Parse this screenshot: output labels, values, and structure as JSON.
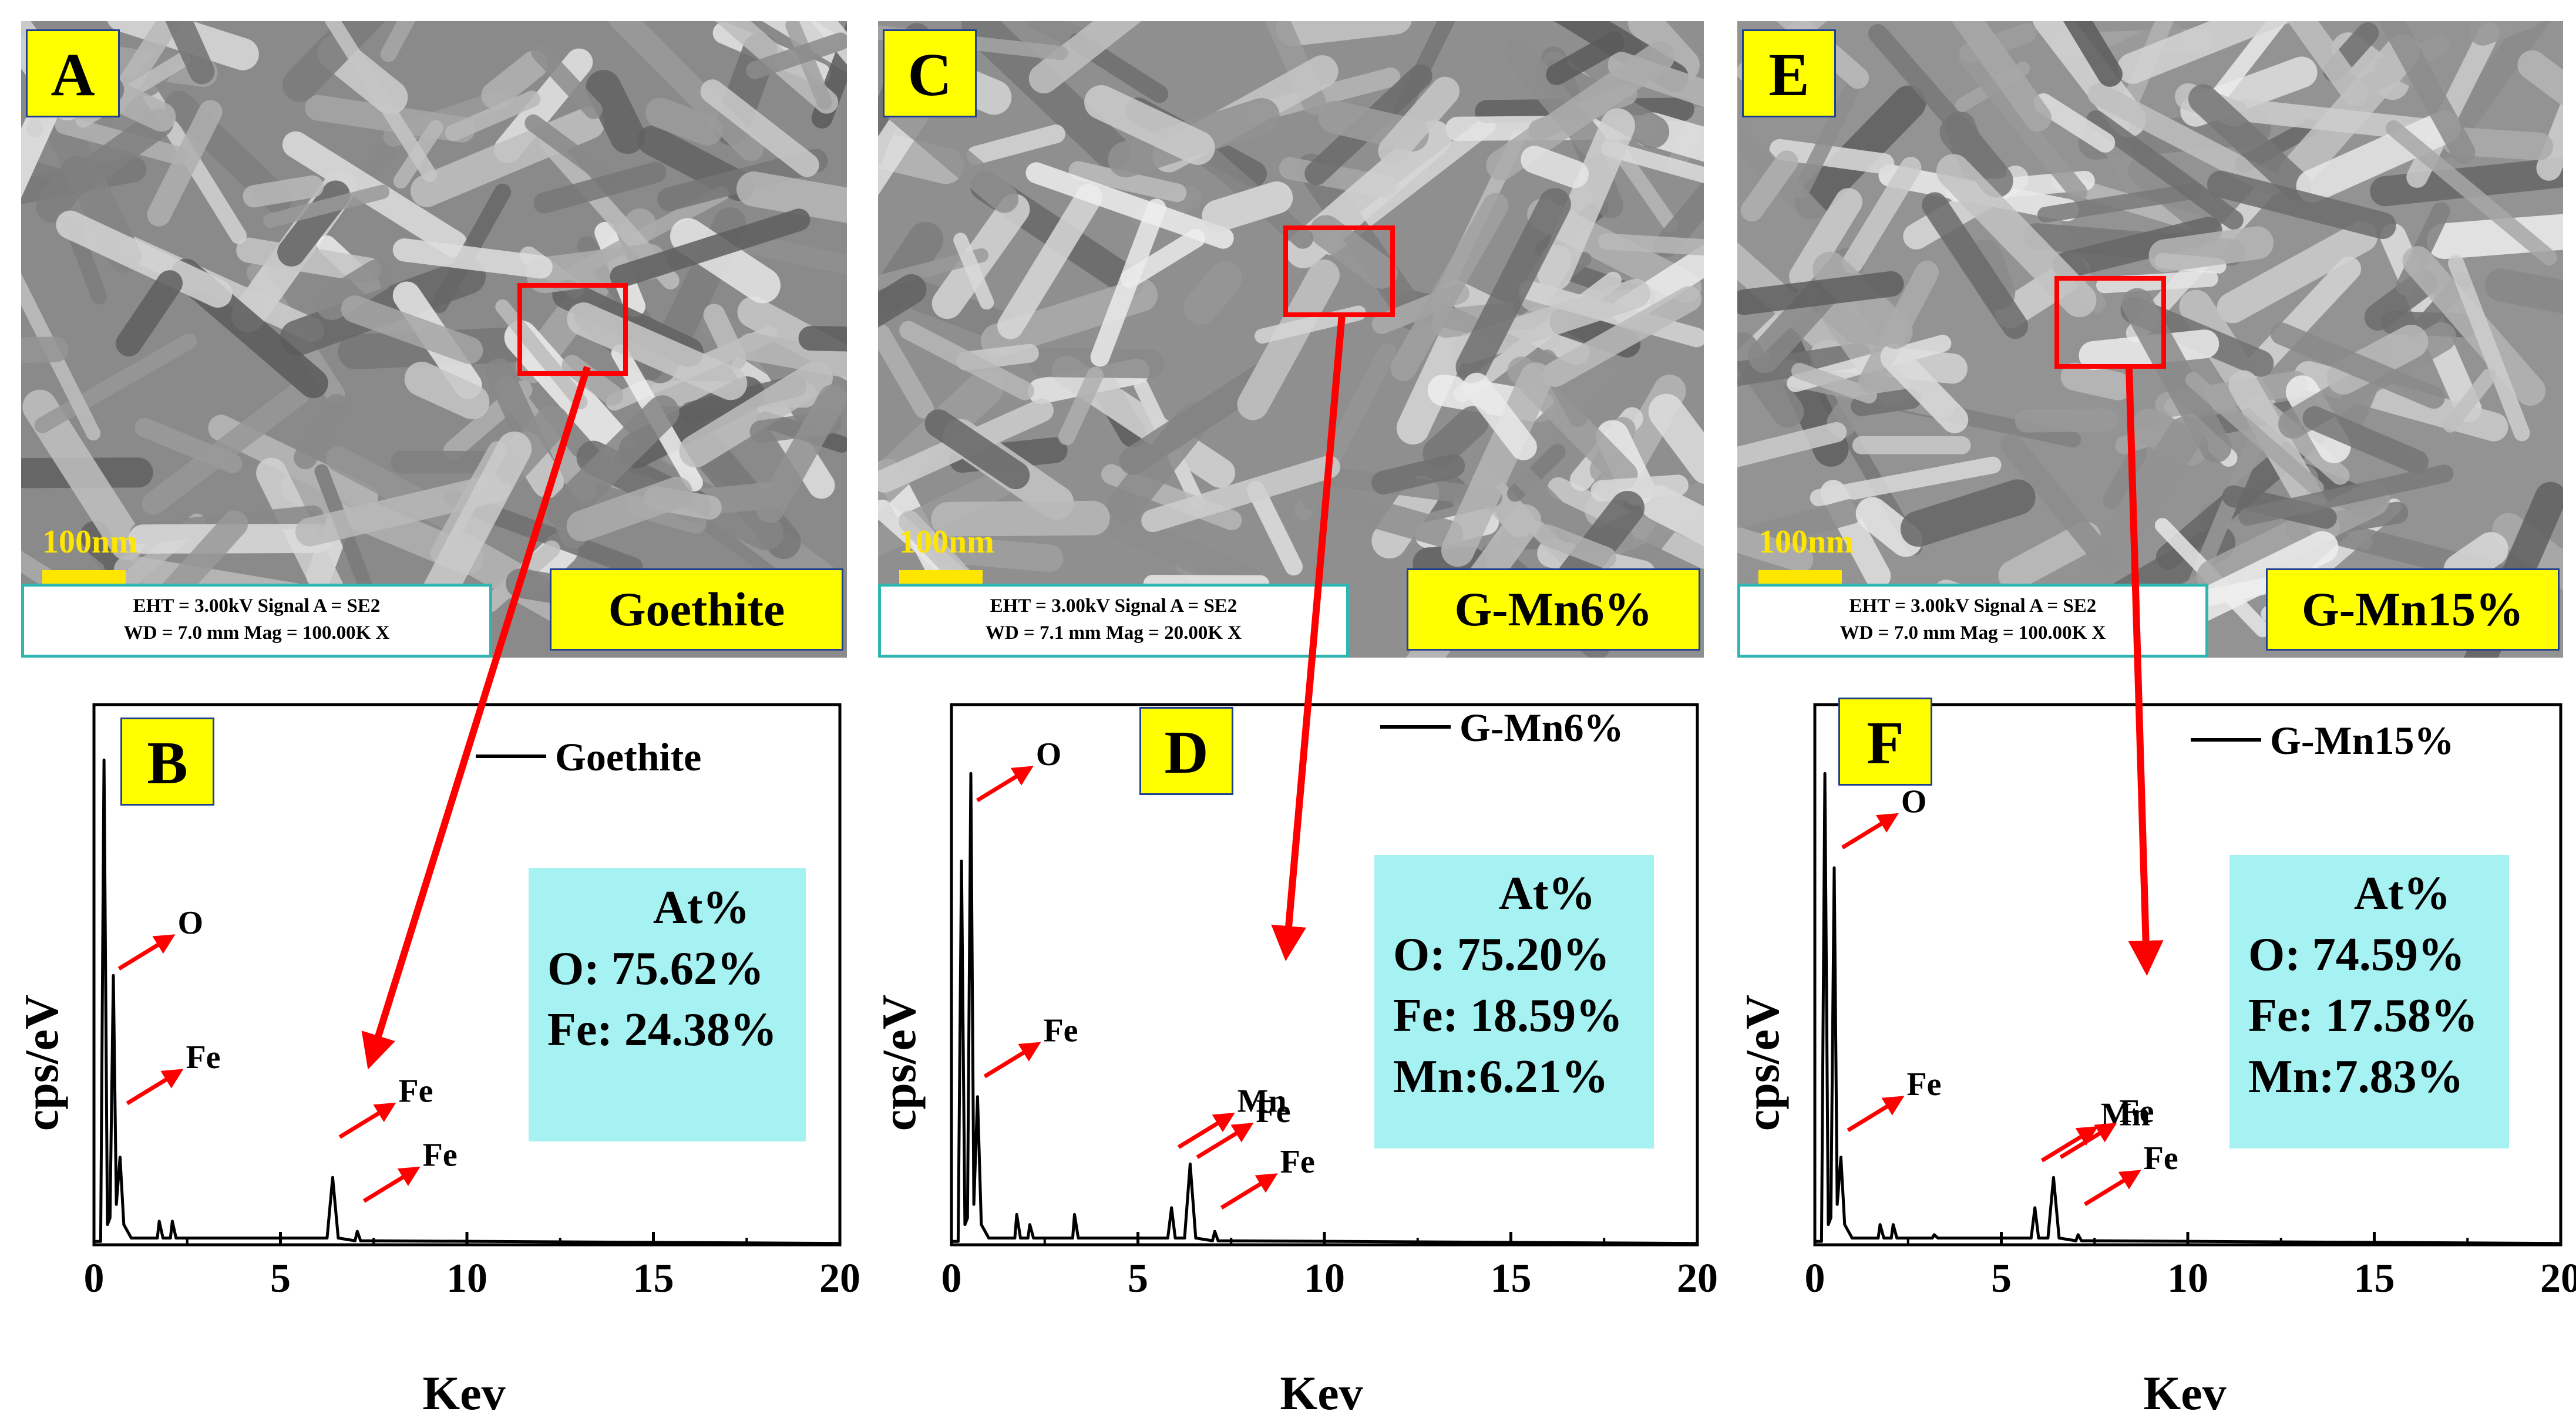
{
  "panels": [
    {
      "sem_label": "A",
      "eds_label": "B",
      "scale": "100nm",
      "info_line1": "EHT = 3.00kV  Signal A = SE2",
      "info_line2": "WD = 7.0 mm   Mag = 100.00K X",
      "sample": "Goethite",
      "legend": "Goethite",
      "at_title": "At%",
      "at_lines": [
        "O:  75.62%",
        "Fe: 24.38%"
      ],
      "peak_labels": [
        {
          "text": "O",
          "x": 0.48,
          "y": 4.1
        },
        {
          "text": "Fe",
          "x": 0.7,
          "y": 2.1
        },
        {
          "text": "Fe",
          "x": 6.4,
          "y": 1.6
        },
        {
          "text": "Fe",
          "x": 7.05,
          "y": 0.65
        }
      ]
    },
    {
      "sem_label": "C",
      "eds_label": "D",
      "scale": "100nm",
      "info_line1": "EHT = 3.00kV  Signal A = SE2",
      "info_line2": "WD = 7.1 mm   Mag = 20.00K X",
      "sample": "G-Mn6%",
      "legend": "G-Mn6%",
      "at_title": "At%",
      "at_lines": [
        "O:  75.20%",
        "Fe: 18.59%",
        "Mn:6.21%"
      ],
      "peak_labels": [
        {
          "text": "O",
          "x": 0.5,
          "y": 6.6
        },
        {
          "text": "Fe",
          "x": 0.7,
          "y": 2.5
        },
        {
          "text": "Mn",
          "x": 5.9,
          "y": 1.45
        },
        {
          "text": "Fe",
          "x": 6.4,
          "y": 1.3
        },
        {
          "text": "Fe",
          "x": 7.05,
          "y": 0.55
        }
      ]
    },
    {
      "sem_label": "E",
      "eds_label": "F",
      "scale": "100nm",
      "info_line1": "EHT = 3.00kV  Signal A = SE2",
      "info_line2": "WD = 7.0 mm   Mag = 100.00K X",
      "sample": "G-Mn15%",
      "legend": "G-Mn15%",
      "at_title": "At%",
      "at_lines": [
        "O:  74.59%",
        "Fe: 17.58%",
        "Mn:7.83%"
      ],
      "peak_labels": [
        {
          "text": "O",
          "x": 0.55,
          "y": 5.9
        },
        {
          "text": "Fe",
          "x": 0.7,
          "y": 1.7
        },
        {
          "text": "Mn",
          "x": 5.9,
          "y": 1.25
        },
        {
          "text": "Fe",
          "x": 6.4,
          "y": 1.3
        },
        {
          "text": "Fe",
          "x": 7.05,
          "y": 0.6
        }
      ]
    }
  ],
  "chart_data": [
    {
      "type": "line",
      "ylabel": "cps/eV",
      "xlabel": "Kev",
      "xlim": [
        0,
        20
      ],
      "x_ticks": [
        "0",
        "5",
        "10",
        "15",
        "20"
      ],
      "ylim": [
        0,
        7.5
      ],
      "series": [
        {
          "values": [
            [
              0,
              0.05
            ],
            [
              0.18,
              0.05
            ],
            [
              0.27,
              7.2
            ],
            [
              0.36,
              0.3
            ],
            [
              0.43,
              0.4
            ],
            [
              0.52,
              4.0
            ],
            [
              0.6,
              0.6
            ],
            [
              0.7,
              1.3
            ],
            [
              0.8,
              0.3
            ],
            [
              1.0,
              0.1
            ],
            [
              1.7,
              0.1
            ],
            [
              1.75,
              0.35
            ],
            [
              1.85,
              0.1
            ],
            [
              2.05,
              0.1
            ],
            [
              2.1,
              0.35
            ],
            [
              2.2,
              0.1
            ],
            [
              6.25,
              0.1
            ],
            [
              6.4,
              1.0
            ],
            [
              6.55,
              0.1
            ],
            [
              7.0,
              0.06
            ],
            [
              7.06,
              0.2
            ],
            [
              7.15,
              0.06
            ],
            [
              20,
              0.02
            ]
          ]
        }
      ]
    },
    {
      "type": "line",
      "ylabel": "cps/eV",
      "xlabel": "Kev",
      "xlim": [
        0,
        20
      ],
      "x_ticks": [
        "0",
        "5",
        "10",
        "15",
        "20"
      ],
      "ylim": [
        0,
        7.5
      ],
      "series": [
        {
          "values": [
            [
              0,
              0.05
            ],
            [
              0.18,
              0.05
            ],
            [
              0.27,
              5.7
            ],
            [
              0.36,
              0.3
            ],
            [
              0.43,
              0.4
            ],
            [
              0.52,
              7.0
            ],
            [
              0.6,
              0.6
            ],
            [
              0.7,
              2.2
            ],
            [
              0.8,
              0.3
            ],
            [
              1.0,
              0.1
            ],
            [
              1.7,
              0.1
            ],
            [
              1.75,
              0.45
            ],
            [
              1.85,
              0.1
            ],
            [
              2.05,
              0.1
            ],
            [
              2.1,
              0.3
            ],
            [
              2.2,
              0.1
            ],
            [
              3.25,
              0.1
            ],
            [
              3.3,
              0.45
            ],
            [
              3.4,
              0.1
            ],
            [
              5.8,
              0.1
            ],
            [
              5.9,
              0.55
            ],
            [
              6.0,
              0.1
            ],
            [
              6.25,
              0.1
            ],
            [
              6.4,
              1.2
            ],
            [
              6.55,
              0.1
            ],
            [
              7.0,
              0.06
            ],
            [
              7.06,
              0.2
            ],
            [
              7.15,
              0.06
            ],
            [
              20,
              0.02
            ]
          ]
        }
      ]
    },
    {
      "type": "line",
      "ylabel": "cps/eV",
      "xlabel": "Kev",
      "xlim": [
        0,
        20
      ],
      "x_ticks": [
        "0",
        "5",
        "10",
        "15",
        "20"
      ],
      "ylim": [
        0,
        7.5
      ],
      "series": [
        {
          "values": [
            [
              0,
              0.05
            ],
            [
              0.18,
              0.05
            ],
            [
              0.27,
              7.0
            ],
            [
              0.36,
              0.3
            ],
            [
              0.43,
              0.4
            ],
            [
              0.52,
              5.6
            ],
            [
              0.6,
              0.6
            ],
            [
              0.7,
              1.3
            ],
            [
              0.8,
              0.3
            ],
            [
              1.0,
              0.1
            ],
            [
              1.7,
              0.1
            ],
            [
              1.75,
              0.3
            ],
            [
              1.85,
              0.1
            ],
            [
              2.05,
              0.1
            ],
            [
              2.1,
              0.3
            ],
            [
              2.2,
              0.1
            ],
            [
              3.15,
              0.1
            ],
            [
              3.2,
              0.15
            ],
            [
              3.3,
              0.1
            ],
            [
              5.8,
              0.1
            ],
            [
              5.9,
              0.55
            ],
            [
              6.0,
              0.1
            ],
            [
              6.25,
              0.1
            ],
            [
              6.4,
              1.0
            ],
            [
              6.55,
              0.1
            ],
            [
              7.0,
              0.06
            ],
            [
              7.06,
              0.15
            ],
            [
              7.15,
              0.06
            ],
            [
              20,
              0.02
            ]
          ]
        }
      ]
    }
  ]
}
